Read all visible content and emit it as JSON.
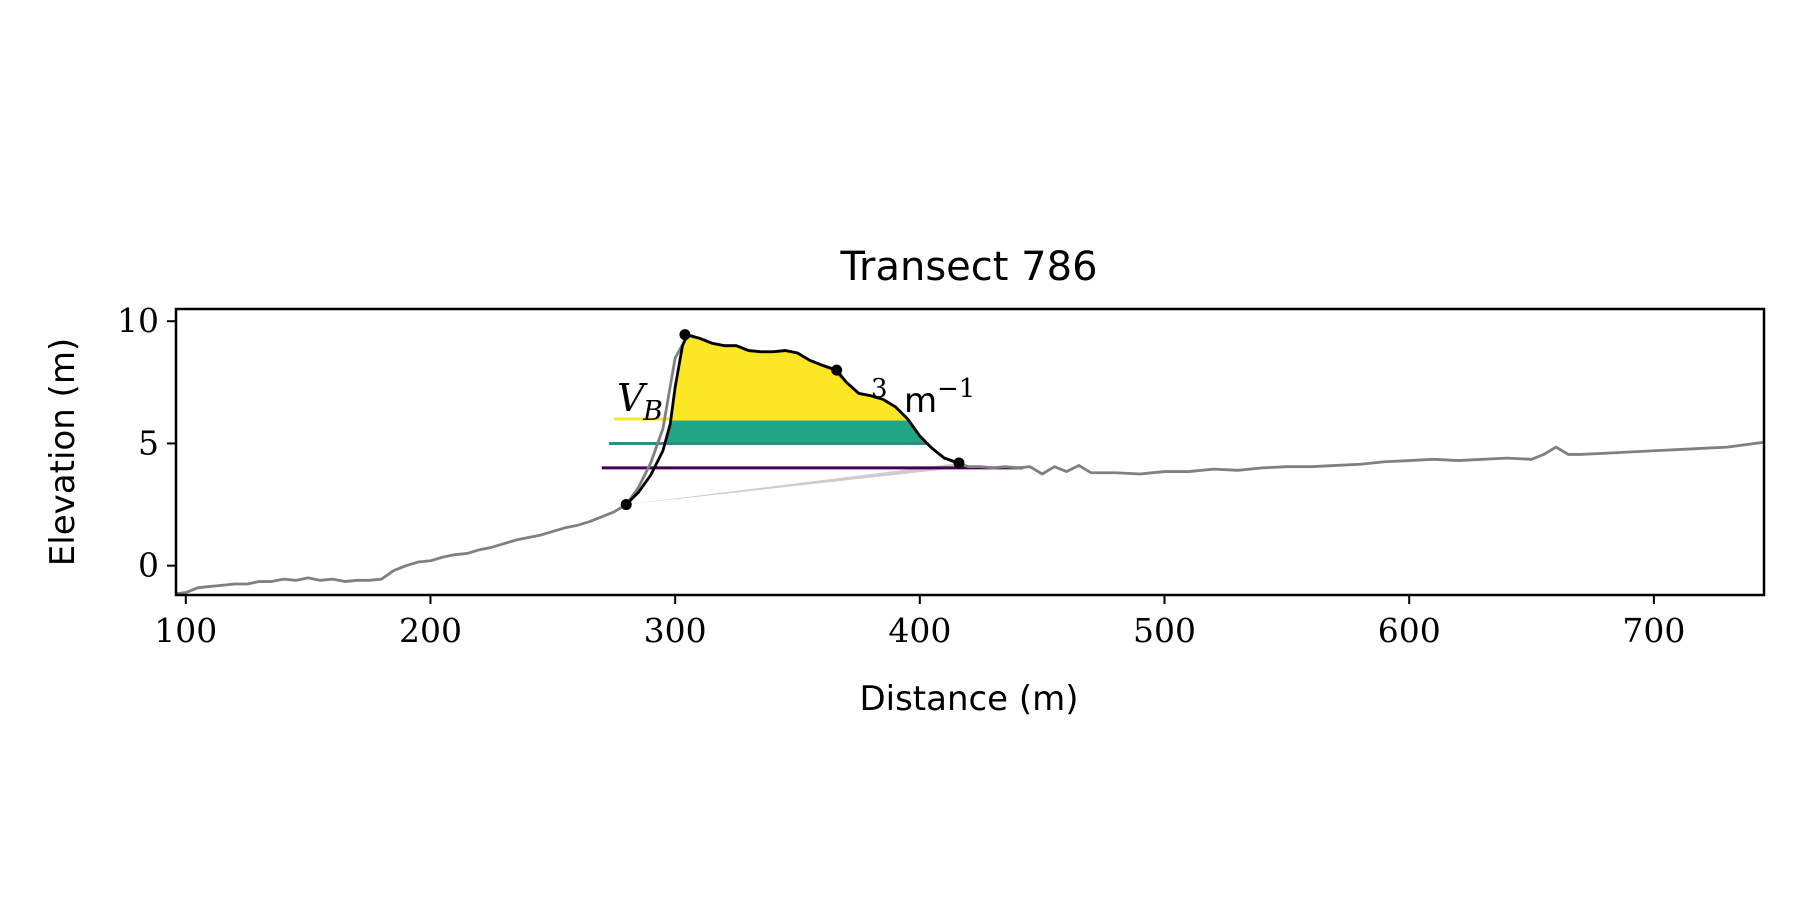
{
  "chart_data": {
    "type": "line",
    "title": "Transect 786",
    "xlabel": "Distance (m)",
    "ylabel": "Elevation (m)",
    "xlim": [
      96,
      745
    ],
    "ylim": [
      -1.2,
      10.5
    ],
    "x_ticks": [
      100,
      200,
      300,
      400,
      500,
      600,
      700
    ],
    "y_ticks": [
      0,
      5,
      10
    ],
    "grid": false,
    "colors": {
      "profile": "#808080",
      "dune_outline": "#000000",
      "toe_fill": "#cccccc",
      "band_top": "#fde725",
      "band_mid": "#21a685",
      "band_low": "#472a7a",
      "level_high": "#fde725",
      "level_mid": "#2a8c8c",
      "level_low": "#440154"
    },
    "annotation": {
      "left_text": "V",
      "left_sub": "B",
      "right_text": "m",
      "right_sup": "3",
      "right_tail": "−1"
    },
    "profile": {
      "x": [
        96,
        100,
        105,
        110,
        115,
        120,
        125,
        130,
        135,
        140,
        145,
        150,
        155,
        160,
        165,
        170,
        175,
        180,
        185,
        190,
        195,
        200,
        205,
        210,
        215,
        220,
        225,
        230,
        235,
        240,
        245,
        250,
        255,
        260,
        265,
        270,
        275,
        280,
        285,
        290,
        295,
        300,
        305,
        310,
        315,
        320,
        325,
        330,
        335,
        340,
        345,
        350,
        355,
        360,
        365,
        370,
        375,
        380,
        385,
        390,
        395,
        400,
        405,
        410,
        415,
        420,
        425,
        430,
        435,
        440,
        445,
        450,
        455,
        460,
        465,
        470,
        475,
        480,
        490,
        500,
        510,
        520,
        530,
        540,
        550,
        560,
        570,
        580,
        590,
        600,
        610,
        620,
        630,
        640,
        650,
        655,
        660,
        665,
        670,
        680,
        690,
        700,
        710,
        720,
        730,
        745
      ],
      "y": [
        -1.15,
        -1.1,
        -0.9,
        -0.85,
        -0.8,
        -0.75,
        -0.75,
        -0.65,
        -0.65,
        -0.55,
        -0.6,
        -0.5,
        -0.6,
        -0.55,
        -0.65,
        -0.6,
        -0.6,
        -0.55,
        -0.2,
        0.0,
        0.15,
        0.2,
        0.35,
        0.45,
        0.5,
        0.65,
        0.75,
        0.9,
        1.05,
        1.15,
        1.25,
        1.4,
        1.55,
        1.65,
        1.8,
        2.0,
        2.2,
        2.5,
        3.2,
        4.2,
        5.6,
        8.5,
        9.4,
        9.3,
        9.1,
        9.0,
        9.0,
        8.8,
        8.75,
        8.75,
        8.8,
        8.7,
        8.4,
        8.2,
        8.0,
        7.5,
        7.05,
        6.95,
        6.8,
        6.5,
        6.0,
        5.3,
        4.8,
        4.4,
        4.2,
        4.05,
        4.05,
        4.0,
        4.05,
        4.0,
        4.05,
        3.75,
        4.05,
        3.85,
        4.1,
        3.8,
        3.8,
        3.8,
        3.75,
        3.85,
        3.85,
        3.95,
        3.9,
        4.0,
        4.05,
        4.05,
        4.1,
        4.15,
        4.25,
        4.3,
        4.35,
        4.3,
        4.35,
        4.4,
        4.35,
        4.55,
        4.85,
        4.55,
        4.55,
        4.6,
        4.65,
        4.7,
        4.75,
        4.8,
        4.85,
        5.05
      ]
    },
    "dune": {
      "x": [
        280,
        285,
        290,
        295,
        298,
        300,
        303,
        305,
        310,
        315,
        320,
        325,
        330,
        335,
        340,
        345,
        350,
        355,
        360,
        366,
        370,
        375,
        380,
        385,
        390,
        395,
        400,
        405,
        410,
        416
      ],
      "y": [
        2.5,
        3.0,
        3.7,
        4.7,
        5.8,
        7.3,
        9.0,
        9.45,
        9.3,
        9.1,
        9.0,
        9.0,
        8.8,
        8.75,
        8.75,
        8.8,
        8.7,
        8.4,
        8.2,
        8.0,
        7.5,
        7.05,
        6.95,
        6.8,
        6.5,
        6.0,
        5.3,
        4.8,
        4.4,
        4.2
      ]
    },
    "key_points": {
      "x": [
        280,
        304,
        366,
        416
      ],
      "y": [
        2.5,
        9.45,
        8.0,
        4.2
      ]
    },
    "levels": [
      {
        "y": 6.0,
        "x": [
          275,
          395
        ]
      },
      {
        "y": 5.0,
        "x": [
          273,
          403
        ]
      },
      {
        "y": 4.0,
        "x": [
          270,
          442
        ]
      }
    ],
    "toe_wedge": {
      "x": [
        280,
        416,
        416
      ],
      "y": [
        2.5,
        4.0,
        4.2
      ]
    }
  }
}
